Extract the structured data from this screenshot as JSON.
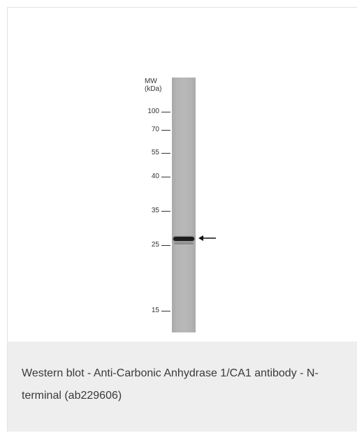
{
  "figure": {
    "mw_header": "MW\n(kDa)",
    "markers": [
      "100",
      "70",
      "55",
      "40",
      "35",
      "25",
      "15"
    ],
    "band_arrow_icon": "left-arrow-icon"
  },
  "caption": {
    "text": "Western blot - Anti-Carbonic Anhydrase 1/CA1 antibody - N-terminal (ab229606)"
  }
}
